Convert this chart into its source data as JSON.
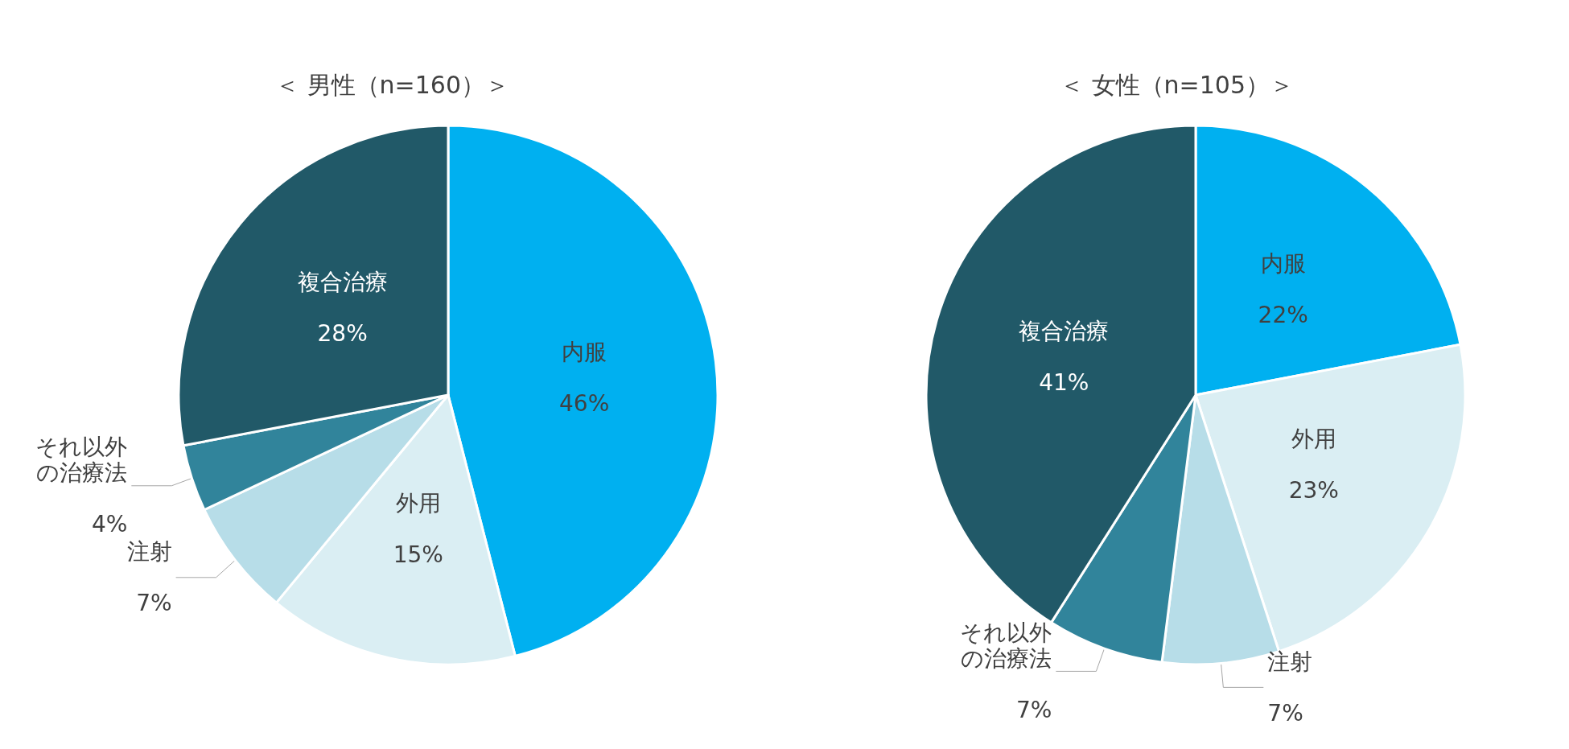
{
  "chart_data": [
    {
      "type": "pie",
      "title": "＜ 男性（n=160）＞",
      "categories": [
        "内服",
        "外用",
        "注射",
        "それ以外の治療法",
        "複合治療"
      ],
      "values": [
        46,
        15,
        7,
        4,
        28
      ],
      "value_labels": [
        "46%",
        "15%",
        "7%",
        "4%",
        "28%"
      ],
      "colors": [
        "#00b0f0",
        "#daeef3",
        "#b7dde8",
        "#31849b",
        "#215968"
      ],
      "legend": false
    },
    {
      "type": "pie",
      "title": "＜ 女性（n=105）＞",
      "categories": [
        "内服",
        "外用",
        "注射",
        "それ以外の治療法",
        "複合治療"
      ],
      "values": [
        22,
        23,
        7,
        7,
        41
      ],
      "value_labels": [
        "22%",
        "23%",
        "7%",
        "7%",
        "41%"
      ],
      "colors": [
        "#00b0f0",
        "#daeef3",
        "#b7dde8",
        "#31849b",
        "#215968"
      ],
      "legend": false
    }
  ]
}
